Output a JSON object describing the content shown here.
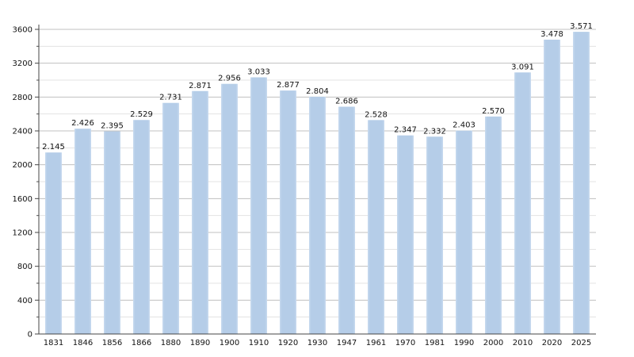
{
  "chart_data": {
    "type": "bar",
    "categories": [
      "1831",
      "1846",
      "1856",
      "1866",
      "1880",
      "1890",
      "1900",
      "1910",
      "1920",
      "1930",
      "1947",
      "1961",
      "1970",
      "1981",
      "1990",
      "2000",
      "2010",
      "2020",
      "2025"
    ],
    "values": [
      2145,
      2426,
      2395,
      2529,
      2731,
      2871,
      2956,
      3033,
      2877,
      2804,
      2686,
      2528,
      2347,
      2332,
      2403,
      2570,
      3091,
      3478,
      3571
    ],
    "value_labels": [
      "2.145",
      "2.426",
      "2.395",
      "2.529",
      "2.731",
      "2.871",
      "2.956",
      "3.033",
      "2.877",
      "2.804",
      "2.686",
      "2.528",
      "2.347",
      "2.332",
      "2.403",
      "2.570",
      "3.091",
      "3.478",
      "3.571"
    ],
    "y_ticks": [
      0,
      400,
      800,
      1200,
      1600,
      2000,
      2400,
      2800,
      3200,
      3600
    ],
    "ylim": [
      0,
      3600
    ],
    "grid": true,
    "bar_color": "#b5cde8",
    "gridline_color": "#c0c0c0"
  }
}
